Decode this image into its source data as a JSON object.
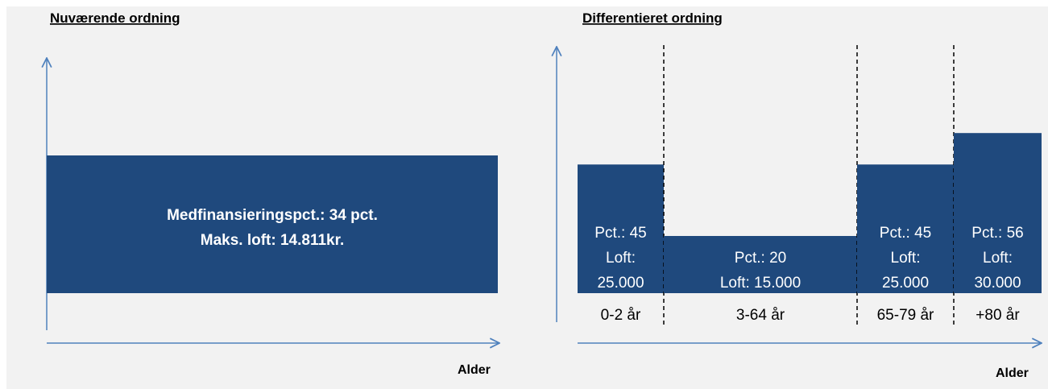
{
  "colors": {
    "bar": "#1f497d",
    "axis": "#4f81bd",
    "background": "#f2f2f2",
    "divider": "#000000"
  },
  "left_panel": {
    "title": "Nuværende ordning",
    "axis_label": "Alder",
    "bar_line1": "Medfinansieringspct.: 34 pct.",
    "bar_line2": "Maks. loft: 14.811kr."
  },
  "right_panel": {
    "title": "Differentieret ordning",
    "axis_label": "Alder",
    "groups": [
      {
        "age": "0-2 år",
        "pct": 45,
        "lines": [
          "Pct.: 45",
          "Loft:",
          "25.000"
        ]
      },
      {
        "age": "3-64 år",
        "pct": 20,
        "lines": [
          "Pct.: 20",
          "Loft: 15.000"
        ]
      },
      {
        "age": "65-79 år",
        "pct": 45,
        "lines": [
          "Pct.: 45",
          "Loft:",
          "25.000"
        ]
      },
      {
        "age": "+80 år",
        "pct": 56,
        "lines": [
          "Pct.: 56",
          "Loft:",
          "30.000"
        ]
      }
    ]
  }
}
